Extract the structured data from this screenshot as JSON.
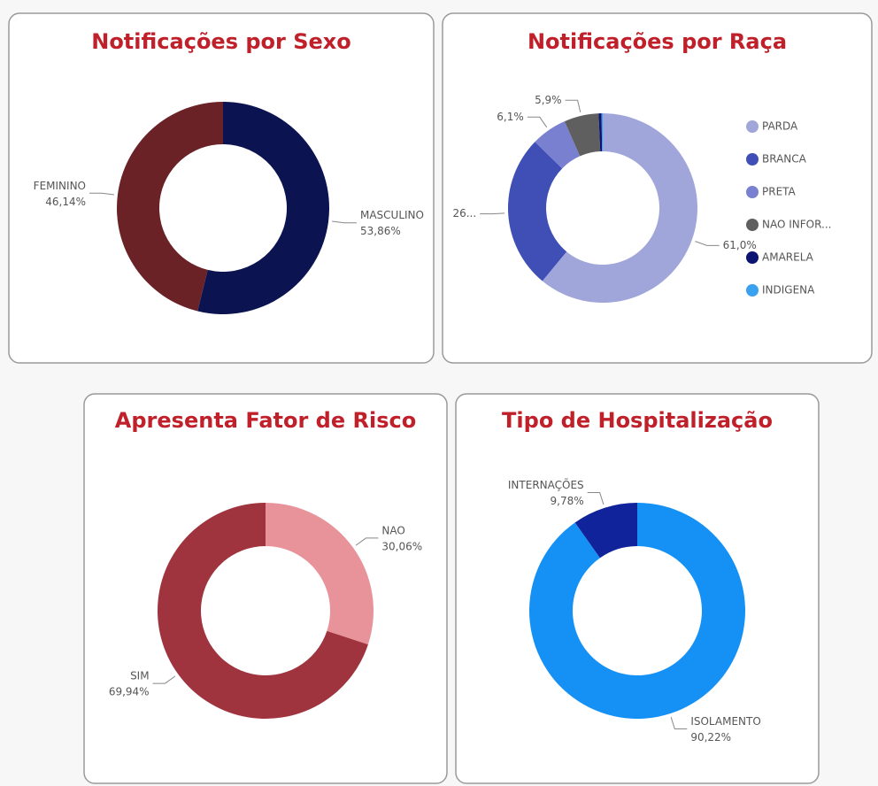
{
  "chart_data": [
    {
      "type": "donut",
      "title": "Notificações por Sexo",
      "categories": [
        "MASCULINO",
        "FEMININO"
      ],
      "values": [
        53.86,
        46.14
      ],
      "value_labels": [
        "53,86%",
        "46,14%"
      ],
      "colors": [
        "#0b1450",
        "#6b2227"
      ]
    },
    {
      "type": "donut",
      "title": "Notificações por Raça",
      "categories": [
        "PARDA",
        "BRANCA",
        "PRETA",
        "NAO INFOR...",
        "AMARELA",
        "INDIGENA"
      ],
      "values": [
        61.0,
        26.3,
        6.1,
        5.9,
        0.5,
        0.2
      ],
      "value_labels": [
        "61,0%",
        "26...",
        "6,1%",
        "5,9%",
        null,
        null
      ],
      "colors": [
        "#a0a6d9",
        "#3f4fb5",
        "#7a80d0",
        "#5f5f5f",
        "#0b1470",
        "#3aa0f0"
      ],
      "legend": "right"
    },
    {
      "type": "donut",
      "title": "Apresenta Fator de Risco",
      "categories": [
        "NAO",
        "SIM"
      ],
      "values": [
        30.06,
        69.94
      ],
      "value_labels": [
        "30,06%",
        "69,94%"
      ],
      "colors": [
        "#e8939a",
        "#a0343e"
      ]
    },
    {
      "type": "donut",
      "title": "Tipo de Hospitalização",
      "categories": [
        "ISOLAMENTO",
        "INTERNAÇÕES"
      ],
      "values": [
        90.22,
        9.78
      ],
      "value_labels": [
        "90,22%",
        "9,78%"
      ],
      "colors": [
        "#1590f5",
        "#10239a"
      ]
    }
  ]
}
